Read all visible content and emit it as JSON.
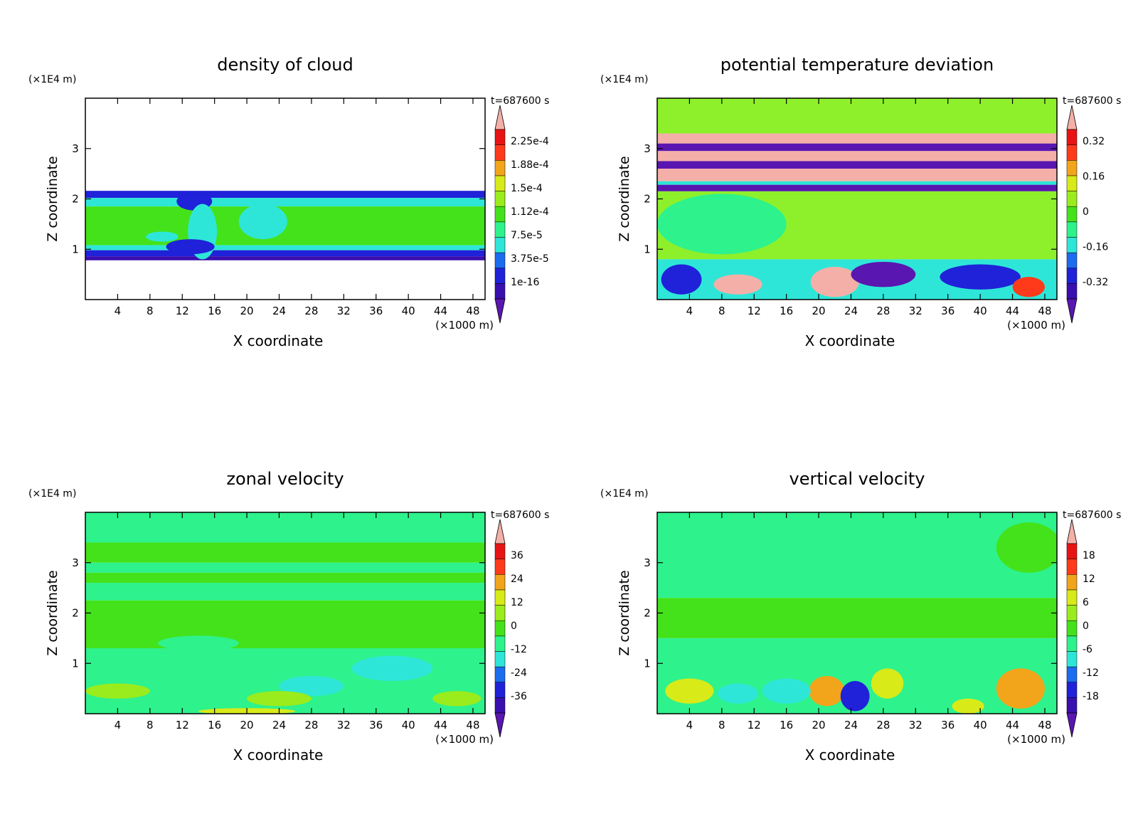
{
  "chart_data": [
    {
      "type": "heatmap",
      "title": "density of cloud",
      "xlabel": "X coordinate",
      "ylabel": "Z coordinate",
      "x_unit": "(×1000 m)",
      "y_unit": "(×1E4 m)",
      "time_label": "t=687600 s",
      "xlim": [
        0,
        49.5
      ],
      "ylim": [
        0,
        4
      ],
      "x_ticks": [
        "4",
        "8",
        "12",
        "16",
        "20",
        "24",
        "28",
        "32",
        "36",
        "40",
        "44",
        "48"
      ],
      "y_ticks": [
        "1",
        "2",
        "3"
      ],
      "colorbar_labels": [
        "2.25e-4",
        "1.88e-4",
        "1.5e-4",
        "1.12e-4",
        "7.5e-5",
        "3.75e-5",
        "1e-16"
      ],
      "bands": [
        {
          "z0": 2.02,
          "z1": 2.16,
          "color": "#1f22d8"
        },
        {
          "z0": 1.85,
          "z1": 2.02,
          "color": "#2ee6d8"
        },
        {
          "z0": 1.08,
          "z1": 1.85,
          "color": "#44e21a"
        },
        {
          "z0": 0.98,
          "z1": 1.08,
          "color": "#2ee6d8"
        },
        {
          "z0": 0.86,
          "z1": 0.98,
          "color": "#1f22d8"
        },
        {
          "z0": 0.78,
          "z1": 0.86,
          "color": "#3a0fb0"
        }
      ],
      "blobs": [
        {
          "x": 13.5,
          "z": 1.95,
          "rx": 2.2,
          "rz": 0.18,
          "color": "#1f22d8"
        },
        {
          "x": 14.5,
          "z": 1.35,
          "rx": 1.8,
          "rz": 0.55,
          "color": "#2ee6d8"
        },
        {
          "x": 13.0,
          "z": 1.05,
          "rx": 3.0,
          "rz": 0.15,
          "color": "#1f22d8"
        },
        {
          "x": 9.5,
          "z": 1.25,
          "rx": 2.0,
          "rz": 0.1,
          "color": "#2ee6d8"
        },
        {
          "x": 22.0,
          "z": 1.55,
          "rx": 3.0,
          "rz": 0.35,
          "color": "#2ee6d8"
        }
      ]
    },
    {
      "type": "heatmap",
      "title": "potential temperature deviation",
      "xlabel": "X coordinate",
      "ylabel": "Z coordinate",
      "x_unit": "(×1000 m)",
      "y_unit": "(×1E4 m)",
      "time_label": "t=687600 s",
      "xlim": [
        0,
        49.5
      ],
      "ylim": [
        0,
        4
      ],
      "x_ticks": [
        "4",
        "8",
        "12",
        "16",
        "20",
        "24",
        "28",
        "32",
        "36",
        "40",
        "44",
        "48"
      ],
      "y_ticks": [
        "1",
        "2",
        "3"
      ],
      "colorbar_labels": [
        "0.32",
        "0.16",
        "0",
        "-0.16",
        "-0.32"
      ],
      "bands": [
        {
          "z0": 3.3,
          "z1": 4.0,
          "color": "#8ef02a"
        },
        {
          "z0": 3.1,
          "z1": 3.3,
          "color": "#f4b0a8"
        },
        {
          "z0": 2.95,
          "z1": 3.1,
          "color": "#5a16b0"
        },
        {
          "z0": 2.75,
          "z1": 2.95,
          "color": "#f4b0a8"
        },
        {
          "z0": 2.6,
          "z1": 2.75,
          "color": "#5a16b0"
        },
        {
          "z0": 2.35,
          "z1": 2.6,
          "color": "#f4b0a8"
        },
        {
          "z0": 2.28,
          "z1": 2.35,
          "color": "#2ee6d8"
        },
        {
          "z0": 2.15,
          "z1": 2.28,
          "color": "#5a16b0"
        },
        {
          "z0": 0.8,
          "z1": 2.15,
          "color": "#8ef02a"
        },
        {
          "z0": 0.0,
          "z1": 0.8,
          "color": "#2ee6d8"
        }
      ],
      "blobs": [
        {
          "x": 8.0,
          "z": 1.5,
          "rx": 8.0,
          "rz": 0.6,
          "color": "#2ef28c"
        },
        {
          "x": 22.0,
          "z": 0.35,
          "rx": 3.0,
          "rz": 0.3,
          "color": "#f4b0a8"
        },
        {
          "x": 28.0,
          "z": 0.5,
          "rx": 4.0,
          "rz": 0.25,
          "color": "#5a16b0"
        },
        {
          "x": 40.0,
          "z": 0.45,
          "rx": 5.0,
          "rz": 0.25,
          "color": "#1f22d8"
        },
        {
          "x": 10.0,
          "z": 0.3,
          "rx": 3.0,
          "rz": 0.2,
          "color": "#f4b0a8"
        },
        {
          "x": 46.0,
          "z": 0.25,
          "rx": 2.0,
          "rz": 0.2,
          "color": "#ff3a1a"
        },
        {
          "x": 3.0,
          "z": 0.4,
          "rx": 2.5,
          "rz": 0.3,
          "color": "#1f22d8"
        }
      ]
    },
    {
      "type": "heatmap",
      "title": "zonal velocity",
      "xlabel": "X coordinate",
      "ylabel": "Z coordinate",
      "x_unit": "(×1000 m)",
      "y_unit": "(×1E4 m)",
      "time_label": "t=687600 s",
      "xlim": [
        0,
        49.5
      ],
      "ylim": [
        0,
        4
      ],
      "x_ticks": [
        "4",
        "8",
        "12",
        "16",
        "20",
        "24",
        "28",
        "32",
        "36",
        "40",
        "44",
        "48"
      ],
      "y_ticks": [
        "1",
        "2",
        "3"
      ],
      "colorbar_labels": [
        "36",
        "24",
        "12",
        "0",
        "-12",
        "-24",
        "-36"
      ],
      "bands": [
        {
          "z0": 3.4,
          "z1": 4.0,
          "color": "#2ef28c"
        },
        {
          "z0": 3.0,
          "z1": 3.4,
          "color": "#44e21a"
        },
        {
          "z0": 2.8,
          "z1": 3.0,
          "color": "#2ef28c"
        },
        {
          "z0": 2.6,
          "z1": 2.8,
          "color": "#44e21a"
        },
        {
          "z0": 2.25,
          "z1": 2.6,
          "color": "#2ef28c"
        },
        {
          "z0": 1.3,
          "z1": 2.25,
          "color": "#44e21a"
        },
        {
          "z0": 0.7,
          "z1": 1.3,
          "color": "#2ef28c"
        },
        {
          "z0": 0.0,
          "z1": 0.7,
          "color": "#2ef28c"
        }
      ],
      "blobs": [
        {
          "x": 38.0,
          "z": 0.9,
          "rx": 5.0,
          "rz": 0.25,
          "color": "#2ee6d8"
        },
        {
          "x": 28.0,
          "z": 0.55,
          "rx": 4.0,
          "rz": 0.2,
          "color": "#2ee6d8"
        },
        {
          "x": 4.0,
          "z": 0.45,
          "rx": 4.0,
          "rz": 0.15,
          "color": "#9aec1c"
        },
        {
          "x": 24.0,
          "z": 0.3,
          "rx": 4.0,
          "rz": 0.15,
          "color": "#9aec1c"
        },
        {
          "x": 20.0,
          "z": 0.05,
          "rx": 6.0,
          "rz": 0.06,
          "color": "#d8ea18"
        },
        {
          "x": 46.0,
          "z": 0.3,
          "rx": 3.0,
          "rz": 0.15,
          "color": "#9aec1c"
        },
        {
          "x": 14.0,
          "z": 1.4,
          "rx": 5.0,
          "rz": 0.15,
          "color": "#2ef28c"
        }
      ]
    },
    {
      "type": "heatmap",
      "title": "vertical velocity",
      "xlabel": "X coordinate",
      "ylabel": "Z coordinate",
      "x_unit": "(×1000 m)",
      "y_unit": "(×1E4 m)",
      "time_label": "t=687600 s",
      "xlim": [
        0,
        49.5
      ],
      "ylim": [
        0,
        4
      ],
      "x_ticks": [
        "4",
        "8",
        "12",
        "16",
        "20",
        "24",
        "28",
        "32",
        "36",
        "40",
        "44",
        "48"
      ],
      "y_ticks": [
        "1",
        "2",
        "3"
      ],
      "colorbar_labels": [
        "18",
        "12",
        "6",
        "0",
        "-6",
        "-12",
        "-18"
      ],
      "bands": [
        {
          "z0": 2.3,
          "z1": 4.0,
          "color": "#2ef28c"
        },
        {
          "z0": 1.5,
          "z1": 2.3,
          "color": "#44e21a"
        },
        {
          "z0": 0.0,
          "z1": 1.5,
          "color": "#2ef28c"
        }
      ],
      "blobs": [
        {
          "x": 4.0,
          "z": 0.45,
          "rx": 3.0,
          "rz": 0.25,
          "color": "#d8ea18"
        },
        {
          "x": 21.0,
          "z": 0.45,
          "rx": 2.2,
          "rz": 0.3,
          "color": "#f2a41a"
        },
        {
          "x": 24.5,
          "z": 0.35,
          "rx": 1.8,
          "rz": 0.3,
          "color": "#1f22d8"
        },
        {
          "x": 28.5,
          "z": 0.6,
          "rx": 2.0,
          "rz": 0.3,
          "color": "#d8ea18"
        },
        {
          "x": 45.0,
          "z": 0.5,
          "rx": 3.0,
          "rz": 0.4,
          "color": "#f2a41a"
        },
        {
          "x": 38.5,
          "z": 0.15,
          "rx": 2.0,
          "rz": 0.15,
          "color": "#d8ea18"
        },
        {
          "x": 46.0,
          "z": 3.3,
          "rx": 4.0,
          "rz": 0.5,
          "color": "#44e21a"
        },
        {
          "x": 16.0,
          "z": 0.45,
          "rx": 3.0,
          "rz": 0.25,
          "color": "#2ee6d8"
        },
        {
          "x": 10.0,
          "z": 0.4,
          "rx": 2.5,
          "rz": 0.2,
          "color": "#2ee6d8"
        }
      ]
    }
  ],
  "colors": {
    "colorbar": [
      "#5a16b0",
      "#3a0fb0",
      "#1f22d8",
      "#1c6cf0",
      "#2ee6d8",
      "#2ef28c",
      "#44e21a",
      "#9aec1c",
      "#d8ea18",
      "#f2a41a",
      "#ff3a1a",
      "#e81414",
      "#f4b0a8"
    ],
    "frame": "#000000"
  }
}
